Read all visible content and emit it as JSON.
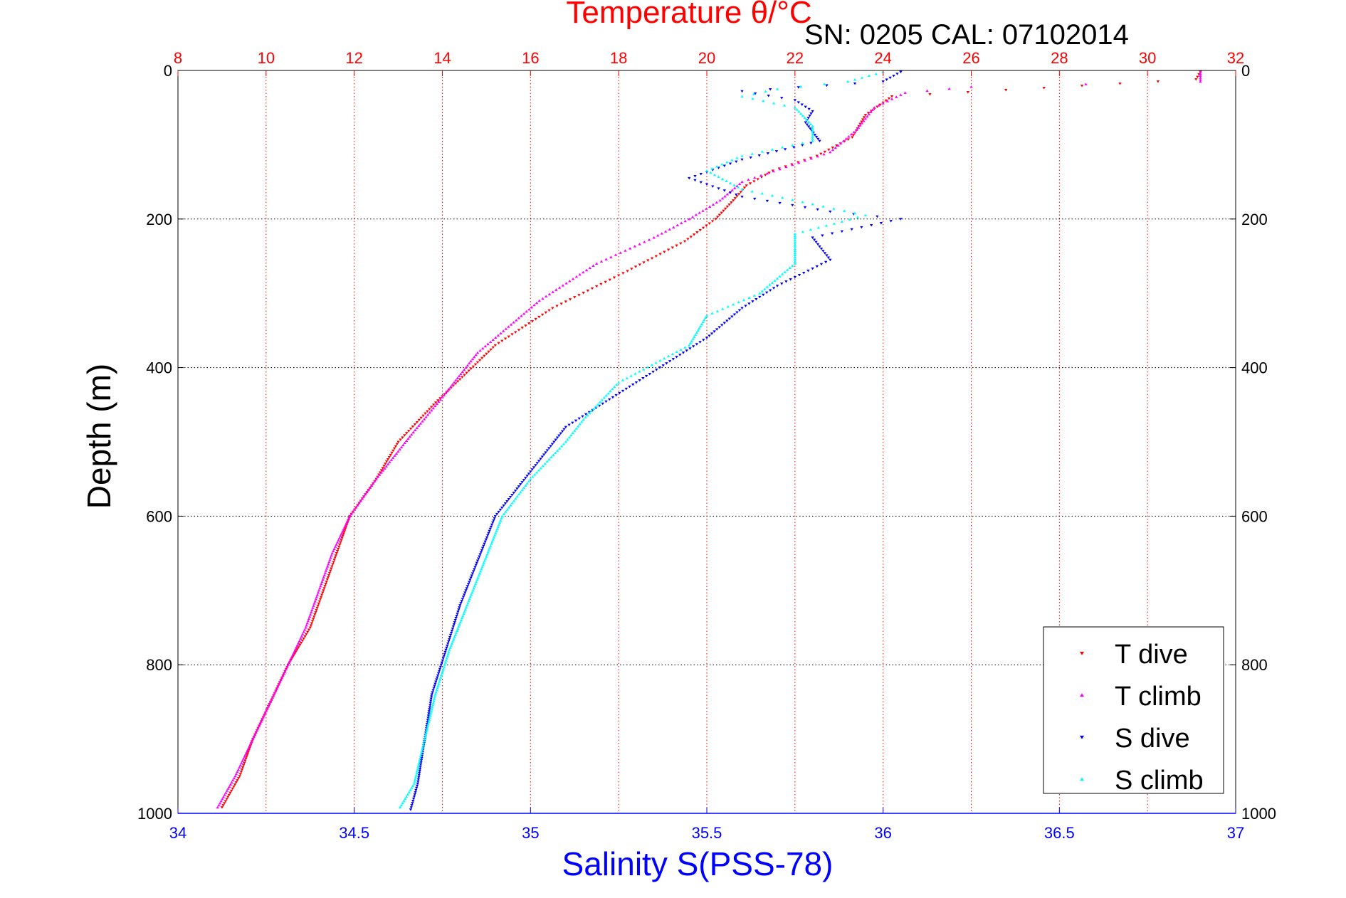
{
  "colors": {
    "background": "#ffffff",
    "axis": "#000000",
    "temperature_axis": "#ff0000",
    "salinity_axis": "#0000ff",
    "t_dive": "#ff0000",
    "t_climb": "#ff00ff",
    "s_dive": "#0000ff",
    "s_climb": "#00ffff"
  },
  "chart_data": {
    "type": "scatter",
    "title": "Temperature θ/°C",
    "subtitle": "SN: 0205  CAL: 07102014",
    "xlabel": "Salinity S(PSS-78)",
    "ylabel": "Depth (m)",
    "grid": true,
    "legend_position": "bottom-right",
    "y_axis": {
      "min": 0,
      "max": 1000,
      "inverted": true,
      "ticks": [
        0,
        200,
        400,
        600,
        800,
        1000
      ]
    },
    "top_x_axis": {
      "quantity": "temperature",
      "min": 8,
      "max": 32,
      "ticks": [
        8,
        10,
        12,
        14,
        16,
        18,
        20,
        22,
        24,
        26,
        28,
        30,
        32
      ]
    },
    "bottom_x_axis": {
      "quantity": "salinity",
      "min": 34,
      "max": 37,
      "ticks": [
        "34",
        "34.5",
        "35",
        "35.5",
        "36",
        "36.5",
        "37"
      ]
    },
    "series": [
      {
        "name": "T dive",
        "axis": "temperature",
        "color": "#ff0000",
        "marker": "triangle-down",
        "points": [
          [
            31.2,
            2
          ],
          [
            31.1,
            12
          ],
          [
            24.2,
            35
          ],
          [
            23.6,
            60
          ],
          [
            23.3,
            90
          ],
          [
            22.5,
            115
          ],
          [
            21.5,
            135
          ],
          [
            20.9,
            155
          ],
          [
            20.6,
            175
          ],
          [
            20.2,
            200
          ],
          [
            19.5,
            230
          ],
          [
            18.2,
            270
          ],
          [
            16.5,
            320
          ],
          [
            15.2,
            370
          ],
          [
            14.5,
            410
          ],
          [
            13.8,
            450
          ],
          [
            13.0,
            500
          ],
          [
            12.5,
            550
          ],
          [
            11.9,
            600
          ],
          [
            11.6,
            650
          ],
          [
            11.3,
            700
          ],
          [
            11.0,
            750
          ],
          [
            10.5,
            800
          ],
          [
            10.1,
            850
          ],
          [
            9.7,
            900
          ],
          [
            9.4,
            950
          ],
          [
            9.0,
            992
          ]
        ]
      },
      {
        "name": "T climb",
        "axis": "temperature",
        "color": "#ff00ff",
        "marker": "triangle-up",
        "points": [
          [
            31.2,
            2
          ],
          [
            31.2,
            15
          ],
          [
            26.0,
            22
          ],
          [
            24.5,
            30
          ],
          [
            23.8,
            50
          ],
          [
            23.4,
            80
          ],
          [
            22.8,
            110
          ],
          [
            21.8,
            130
          ],
          [
            20.8,
            150
          ],
          [
            20.3,
            175
          ],
          [
            19.6,
            200
          ],
          [
            18.8,
            225
          ],
          [
            17.5,
            260
          ],
          [
            16.2,
            310
          ],
          [
            14.8,
            380
          ],
          [
            14.0,
            440
          ],
          [
            13.3,
            490
          ],
          [
            12.5,
            550
          ],
          [
            11.9,
            600
          ],
          [
            11.5,
            650
          ],
          [
            11.2,
            700
          ],
          [
            10.9,
            750
          ],
          [
            10.5,
            800
          ],
          [
            10.1,
            850
          ],
          [
            9.7,
            900
          ],
          [
            9.3,
            950
          ],
          [
            8.9,
            992
          ]
        ]
      },
      {
        "name": "S dive",
        "axis": "salinity",
        "color": "#0000ff",
        "marker": "triangle-down",
        "points": [
          [
            36.05,
            2
          ],
          [
            36.0,
            15
          ],
          [
            35.6,
            28
          ],
          [
            35.75,
            40
          ],
          [
            35.8,
            55
          ],
          [
            35.78,
            70
          ],
          [
            35.82,
            95
          ],
          [
            35.6,
            120
          ],
          [
            35.45,
            145
          ],
          [
            35.6,
            170
          ],
          [
            35.85,
            190
          ],
          [
            36.05,
            200
          ],
          [
            35.8,
            225
          ],
          [
            35.85,
            255
          ],
          [
            35.7,
            290
          ],
          [
            35.6,
            320
          ],
          [
            35.5,
            360
          ],
          [
            35.3,
            420
          ],
          [
            35.1,
            480
          ],
          [
            35.0,
            540
          ],
          [
            34.9,
            600
          ],
          [
            34.85,
            660
          ],
          [
            34.8,
            720
          ],
          [
            34.76,
            780
          ],
          [
            34.72,
            840
          ],
          [
            34.7,
            900
          ],
          [
            34.68,
            960
          ],
          [
            34.66,
            995
          ]
        ]
      },
      {
        "name": "S climb",
        "axis": "salinity",
        "color": "#00ffff",
        "marker": "triangle-up",
        "points": [
          [
            36.0,
            2
          ],
          [
            35.9,
            15
          ],
          [
            35.7,
            25
          ],
          [
            35.6,
            35
          ],
          [
            35.75,
            50
          ],
          [
            35.8,
            75
          ],
          [
            35.8,
            95
          ],
          [
            35.6,
            115
          ],
          [
            35.5,
            135
          ],
          [
            35.6,
            160
          ],
          [
            35.8,
            180
          ],
          [
            35.95,
            195
          ],
          [
            35.75,
            220
          ],
          [
            35.75,
            260
          ],
          [
            35.65,
            300
          ],
          [
            35.5,
            330
          ],
          [
            35.45,
            370
          ],
          [
            35.25,
            420
          ],
          [
            35.15,
            470
          ],
          [
            35.1,
            500
          ],
          [
            35.0,
            550
          ],
          [
            34.92,
            600
          ],
          [
            34.87,
            660
          ],
          [
            34.82,
            720
          ],
          [
            34.77,
            780
          ],
          [
            34.73,
            840
          ],
          [
            34.7,
            900
          ],
          [
            34.67,
            960
          ],
          [
            34.63,
            992
          ]
        ]
      }
    ]
  }
}
